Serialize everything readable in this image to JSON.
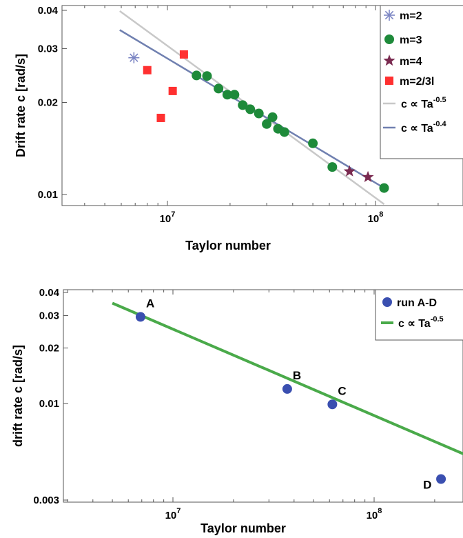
{
  "chart_data": [
    {
      "type": "scatter",
      "xlabel": "Taylor number",
      "ylabel": "Drift rate c [rad/s]",
      "xscale": "log",
      "yscale": "log",
      "xlim": [
        4000000,
        200000000
      ],
      "ylim": [
        0.0093,
        0.0415
      ],
      "xticks": [
        {
          "value": 10000000,
          "base": "10",
          "exp": "7"
        },
        {
          "value": 100000000,
          "base": "10",
          "exp": "8"
        }
      ],
      "yticks": [
        {
          "value": 0.01,
          "label": "0.01"
        },
        {
          "value": 0.02,
          "label": "0.02"
        },
        {
          "value": 0.03,
          "label": "0.03"
        },
        {
          "value": 0.04,
          "label": "0.04"
        }
      ],
      "legend_position": "top-right",
      "grid": false,
      "series": [
        {
          "name": "m=2",
          "marker": "asterisk",
          "color": "#7c86c4",
          "x": [
            6900000
          ],
          "y": [
            0.028
          ]
        },
        {
          "name": "m=3",
          "marker": "circle",
          "color": "#1e8a3a",
          "x": [
            13800000,
            15500000,
            17600000,
            19400000,
            21000000,
            23000000,
            25000000,
            27500000,
            30000000,
            32000000,
            34000000,
            36500000,
            50000000,
            62000000,
            110000000
          ],
          "y": [
            0.0245,
            0.0244,
            0.0222,
            0.0212,
            0.0212,
            0.0196,
            0.019,
            0.0184,
            0.017,
            0.0179,
            0.0164,
            0.016,
            0.0147,
            0.0123,
            0.0105
          ]
        },
        {
          "name": "m=4",
          "marker": "star",
          "color": "#7a2a50",
          "x": [
            75000000,
            92000000
          ],
          "y": [
            0.0119,
            0.0114
          ]
        },
        {
          "name": "m=2/3l",
          "marker": "square",
          "color": "#ff3030",
          "x": [
            8000000,
            9300000,
            10600000,
            12000000
          ],
          "y": [
            0.0255,
            0.0178,
            0.0218,
            0.0287
          ]
        }
      ],
      "fit_lines": [
        {
          "label": "c ∝ Ta",
          "exponent": "-0.5",
          "color": "#c8c8c8",
          "x": [
            5900000,
            110000000
          ],
          "y": [
            0.0398,
            0.0093
          ]
        },
        {
          "label": "c ∝ Ta",
          "exponent": "-0.4",
          "color": "#7080b0",
          "x": [
            5900000,
            110000000
          ],
          "y": [
            0.0345,
            0.0105
          ]
        }
      ]
    },
    {
      "type": "scatter",
      "xlabel": "Taylor number",
      "ylabel": "drift rate c [rad/s]",
      "xscale": "log",
      "yscale": "log",
      "xlim": [
        3500000,
        400000000
      ],
      "ylim": [
        0.003,
        0.042
      ],
      "xticks": [
        {
          "value": 10000000,
          "base": "10",
          "exp": "7"
        },
        {
          "value": 100000000,
          "base": "10",
          "exp": "8"
        }
      ],
      "yticks": [
        {
          "value": 0.003,
          "label": "0.003"
        },
        {
          "value": 0.01,
          "label": "0.01"
        },
        {
          "value": 0.02,
          "label": "0.02"
        },
        {
          "value": 0.03,
          "label": "0.03"
        },
        {
          "value": 0.04,
          "label": "0.04"
        }
      ],
      "legend_position": "top-right",
      "grid": false,
      "series": [
        {
          "name": "run A-D",
          "marker": "circle",
          "color": "#3a4fb0",
          "x": [
            6900000,
            37000000,
            62000000,
            215000000
          ],
          "y": [
            0.0295,
            0.012,
            0.0099,
            0.0039
          ],
          "labels": [
            "A",
            "B",
            "C",
            "D"
          ]
        }
      ],
      "fit_lines": [
        {
          "label": "c ∝ Ta",
          "exponent": "-0.5",
          "color": "#4aaa4a",
          "x": [
            5000000,
            400000000
          ],
          "y": [
            0.035,
            0.0045
          ]
        }
      ]
    }
  ]
}
